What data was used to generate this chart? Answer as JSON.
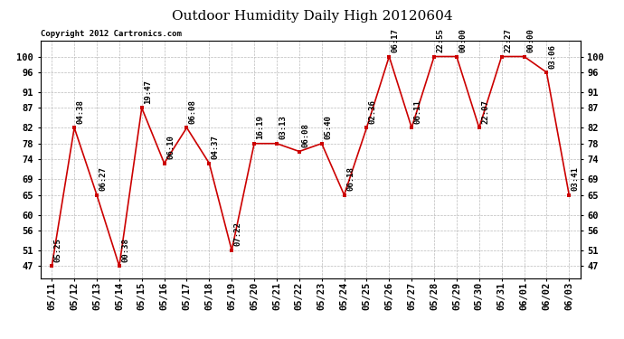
{
  "title": "Outdoor Humidity Daily High 20120604",
  "copyright": "Copyright 2012 Cartronics.com",
  "x_labels": [
    "05/11",
    "05/12",
    "05/13",
    "05/14",
    "05/15",
    "05/16",
    "05/17",
    "05/18",
    "05/19",
    "05/20",
    "05/21",
    "05/22",
    "05/23",
    "05/24",
    "05/25",
    "05/26",
    "05/27",
    "05/28",
    "05/29",
    "05/30",
    "05/31",
    "06/01",
    "06/02",
    "06/03"
  ],
  "y_values": [
    47,
    82,
    65,
    47,
    87,
    73,
    82,
    73,
    51,
    78,
    78,
    76,
    78,
    65,
    82,
    100,
    82,
    100,
    100,
    82,
    100,
    100,
    96,
    65
  ],
  "time_labels": [
    "05:25",
    "04:38",
    "06:27",
    "00:38",
    "19:47",
    "06:10",
    "06:08",
    "04:37",
    "07:22",
    "16:19",
    "03:13",
    "06:08",
    "05:40",
    "06:18",
    "02:36",
    "06:17",
    "06:11",
    "22:55",
    "00:00",
    "22:07",
    "22:27",
    "00:00",
    "03:06",
    "03:41"
  ],
  "line_color": "#cc0000",
  "marker_color": "#cc0000",
  "bg_color": "#ffffff",
  "grid_color": "#bbbbbb",
  "title_fontsize": 11,
  "label_fontsize": 6.5,
  "tick_fontsize": 7.5,
  "copyright_fontsize": 6.5,
  "y_ticks": [
    47,
    51,
    56,
    60,
    65,
    69,
    74,
    78,
    82,
    87,
    91,
    96,
    100
  ],
  "ylim_min": 44,
  "ylim_max": 104
}
